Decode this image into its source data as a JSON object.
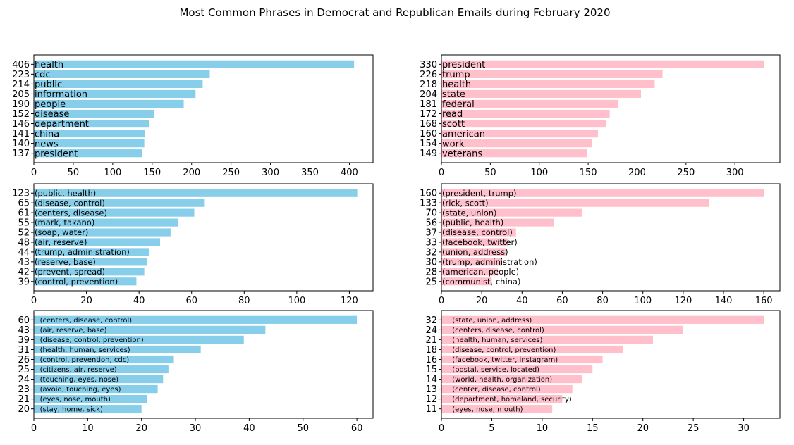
{
  "title": "Most Common Phrases in Democrat and Republican Emails during February 2020",
  "colors": {
    "democrat": "#87CEEB",
    "republican": "#FFC0CB"
  },
  "chart_data": [
    {
      "type": "bar",
      "orientation": "horizontal",
      "party": "democrat",
      "categories": [
        "health",
        "cdc",
        "public",
        "information",
        "people",
        "disease",
        "department",
        "china",
        "news",
        "president"
      ],
      "values": [
        406,
        223,
        214,
        205,
        190,
        152,
        146,
        141,
        140,
        137
      ],
      "xlim": [
        0,
        430
      ],
      "xticks": [
        0,
        50,
        100,
        150,
        200,
        250,
        300,
        350,
        400
      ],
      "label_size": "large",
      "label_offset": 0
    },
    {
      "type": "bar",
      "orientation": "horizontal",
      "party": "republican",
      "categories": [
        "president",
        "trump",
        "health",
        "state",
        "federal",
        "read",
        "scott",
        "american",
        "work",
        "veterans"
      ],
      "values": [
        330,
        226,
        218,
        204,
        181,
        172,
        168,
        160,
        154,
        149
      ],
      "xlim": [
        0,
        346
      ],
      "xticks": [
        0,
        50,
        100,
        150,
        200,
        250,
        300
      ],
      "label_size": "large",
      "label_offset": 0
    },
    {
      "type": "bar",
      "orientation": "horizontal",
      "party": "democrat",
      "categories": [
        "(public, health)",
        "(disease, control)",
        "(centers, disease)",
        "(mark, takano)",
        "(soap, water)",
        "(air, reserve)",
        "(trump, administration)",
        "(reserve, base)",
        "(prevent, spread)",
        "(control, prevention)"
      ],
      "values": [
        123,
        65,
        61,
        55,
        52,
        48,
        44,
        43,
        42,
        39
      ],
      "xlim": [
        0,
        129
      ],
      "xticks": [
        0,
        20,
        40,
        60,
        80,
        100,
        120
      ],
      "label_size": "medium",
      "label_offset": 0
    },
    {
      "type": "bar",
      "orientation": "horizontal",
      "party": "republican",
      "categories": [
        "(president, trump)",
        "(rick, scott)",
        "(state, union)",
        "(public, health)",
        "(disease, control)",
        "(facebook, twitter)",
        "(union, address)",
        "(trump, administration)",
        "(american, people)",
        "(communist, china)"
      ],
      "values": [
        160,
        133,
        70,
        56,
        37,
        33,
        32,
        30,
        28,
        25
      ],
      "xlim": [
        0,
        168
      ],
      "xticks": [
        0,
        20,
        40,
        60,
        80,
        100,
        120,
        140,
        160
      ],
      "label_size": "medium",
      "label_offset": 0
    },
    {
      "type": "bar",
      "orientation": "horizontal",
      "party": "democrat",
      "categories": [
        "(centers, disease, control)",
        "(air, reserve, base)",
        "(disease, control, prevention)",
        "(health, human, services)",
        "(control, prevention, cdc)",
        "(citizens, air, reserve)",
        "(touching, eyes, nose)",
        "(avoid, touching, eyes)",
        "(eyes, nose, mouth)",
        "(stay, home, sick)"
      ],
      "values": [
        60,
        43,
        39,
        31,
        26,
        25,
        24,
        23,
        21,
        20
      ],
      "xlim": [
        0,
        63
      ],
      "xticks": [
        0,
        10,
        20,
        30,
        40,
        50,
        60
      ],
      "label_size": "small",
      "label_offset": 1
    },
    {
      "type": "bar",
      "orientation": "horizontal",
      "party": "republican",
      "categories": [
        "(state, union, address)",
        "(centers, disease, control)",
        "(health, human, services)",
        "(disease, control, prevention)",
        "(facebook, twitter, instagram)",
        "(postal, service, located)",
        "(world, health, organization)",
        "(center, disease, control)",
        "(department, homeland, security)",
        "(eyes, nose, mouth)"
      ],
      "values": [
        32,
        24,
        21,
        18,
        16,
        15,
        14,
        13,
        12,
        11
      ],
      "xlim": [
        0,
        33.6
      ],
      "xticks": [
        0,
        5,
        10,
        15,
        20,
        25,
        30
      ],
      "label_size": "small",
      "label_offset": 1
    }
  ]
}
